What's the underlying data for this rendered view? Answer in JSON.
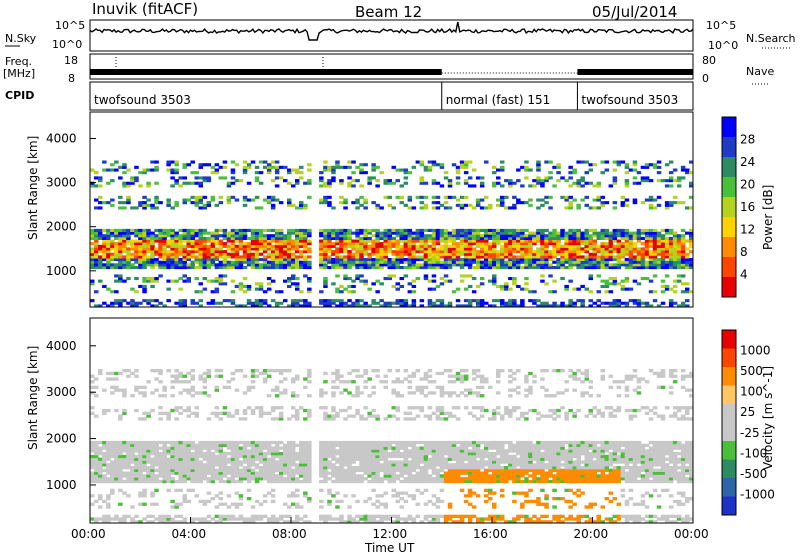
{
  "header": {
    "station": "Inuvik (fitACF)",
    "beam": "Beam 12",
    "date": "05/Jul/2014"
  },
  "left_labels": {
    "nsky": "N.Sky",
    "freq": "Freq.",
    "freq_unit": "[MHz]",
    "cpid": "CPID"
  },
  "right_labels": {
    "nsearch": "N.Search",
    "nave": "Nave"
  },
  "noise_axis_ticks": [
    "10^5",
    "10^0"
  ],
  "freq_axis_ticks": [
    "18",
    "8"
  ],
  "nave_axis_ticks": [
    "80",
    "0"
  ],
  "cpid_segments": [
    {
      "label": "twofsound 3503",
      "start_hour": 0,
      "end_hour": 14
    },
    {
      "label": "normal (fast) 151",
      "start_hour": 14,
      "end_hour": 19.4
    },
    {
      "label": "twofsound 3503",
      "start_hour": 19.4,
      "end_hour": 24
    }
  ],
  "colors": {
    "power": [
      "#0000ff",
      "#1e3cc8",
      "#2d8c64",
      "#4cbf3a",
      "#b4d21e",
      "#ffd200",
      "#ff8c00",
      "#ff4600",
      "#e60000"
    ],
    "velocity": [
      "#1e32c8",
      "#2d64aa",
      "#2d8c64",
      "#4cbf3a",
      "#c8c8c8",
      "#c8c8c8",
      "#ffc864",
      "#ff8c00",
      "#ff4600",
      "#e60000"
    ]
  },
  "chart_data": [
    {
      "type": "heatmap",
      "title": "Power",
      "ylabel": "Slant Range [km]",
      "xlabel": "Time UT",
      "xlim_hours": [
        0,
        24
      ],
      "ylim_km": [
        180,
        4600
      ],
      "x_ticks": [
        "00:00",
        "04:00",
        "08:00",
        "12:00",
        "16:00",
        "20:00",
        "00:00"
      ],
      "y_ticks": [
        1000,
        2000,
        3000,
        4000
      ],
      "colorbar": {
        "label": "Power [dB]",
        "ticks": [
          4,
          8,
          12,
          16,
          20,
          24,
          28
        ]
      },
      "main_band_km": [
        1000,
        2000
      ],
      "secondary_bands_km": [
        [
          2400,
          2700
        ],
        [
          2900,
          3100
        ],
        [
          3200,
          3500
        ],
        [
          500,
          900
        ]
      ],
      "data_gap_hours": [
        8.7,
        9.1
      ]
    },
    {
      "type": "heatmap",
      "title": "Velocity",
      "ylabel": "Slant Range [km]",
      "xlabel": "Time UT",
      "xlim_hours": [
        0,
        24
      ],
      "ylim_km": [
        180,
        4600
      ],
      "x_ticks": [
        "00:00",
        "04:00",
        "08:00",
        "12:00",
        "16:00",
        "20:00",
        "00:00"
      ],
      "y_ticks": [
        1000,
        2000,
        3000,
        4000
      ],
      "colorbar": {
        "label": "Velocity [m s^-1]",
        "ticks": [
          1000,
          500,
          100,
          25,
          -25,
          -100,
          -500,
          -1000
        ]
      },
      "main_band_km": [
        1000,
        2000
      ],
      "data_gap_hours": [
        8.7,
        9.1
      ]
    }
  ]
}
